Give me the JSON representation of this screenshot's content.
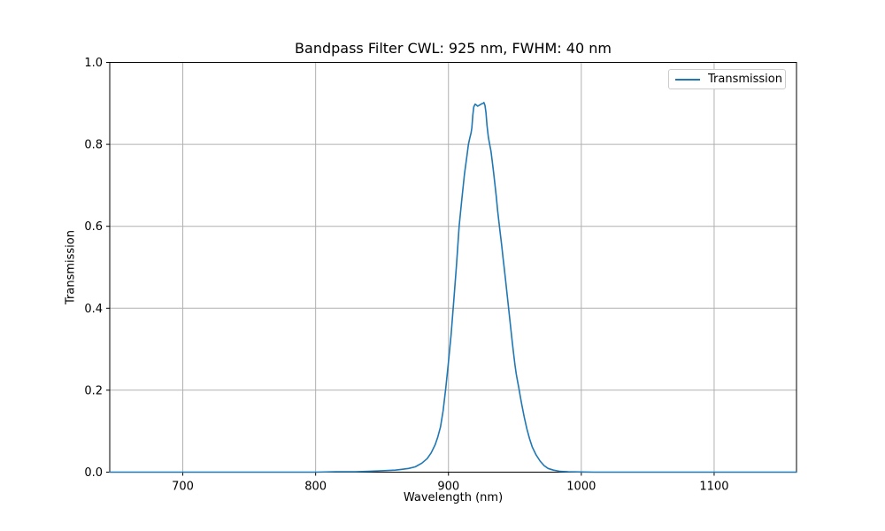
{
  "chart_data": {
    "type": "line",
    "title": "Bandpass Filter CWL: 925 nm, FWHM: 40 nm",
    "xlabel": "Wavelength (nm)",
    "ylabel": "Transmission",
    "xlim": [
      645,
      1162
    ],
    "ylim": [
      0.0,
      1.0
    ],
    "grid": true,
    "legend_position": "upper right",
    "xticks": [
      700,
      800,
      900,
      1000,
      1100
    ],
    "xtick_labels": [
      "700",
      "800",
      "900",
      "1000",
      "1100"
    ],
    "yticks": [
      0.0,
      0.2,
      0.4,
      0.6,
      0.8,
      1.0
    ],
    "ytick_labels": [
      "0.0",
      "0.2",
      "0.4",
      "0.6",
      "0.8",
      "1.0"
    ],
    "filter": {
      "cwl_nm": 925,
      "fwhm_nm": 40,
      "peak_transmission": 0.9
    },
    "colors": {
      "line": "#1f77b4",
      "grid": "#b0b0b0",
      "spine": "#000000",
      "background": "#ffffff"
    },
    "series": [
      {
        "name": "Transmission",
        "color": "#1f77b4",
        "points": [
          [
            645,
            0
          ],
          [
            660,
            0
          ],
          [
            680,
            0
          ],
          [
            700,
            0
          ],
          [
            720,
            0
          ],
          [
            740,
            0
          ],
          [
            760,
            0
          ],
          [
            780,
            0
          ],
          [
            800,
            0
          ],
          [
            815,
            0.001
          ],
          [
            830,
            0.001
          ],
          [
            840,
            0.002
          ],
          [
            848,
            0.003
          ],
          [
            855,
            0.004
          ],
          [
            860,
            0.005
          ],
          [
            865,
            0.007
          ],
          [
            870,
            0.009
          ],
          [
            875,
            0.013
          ],
          [
            880,
            0.022
          ],
          [
            884,
            0.033
          ],
          [
            887,
            0.047
          ],
          [
            890,
            0.067
          ],
          [
            892,
            0.086
          ],
          [
            894,
            0.11
          ],
          [
            896,
            0.15
          ],
          [
            898,
            0.205
          ],
          [
            900,
            0.268
          ],
          [
            902,
            0.335
          ],
          [
            904,
            0.42
          ],
          [
            906,
            0.505
          ],
          [
            908,
            0.6
          ],
          [
            910,
            0.665
          ],
          [
            912,
            0.727
          ],
          [
            914,
            0.775
          ],
          [
            915,
            0.8
          ],
          [
            916,
            0.815
          ],
          [
            917,
            0.828
          ],
          [
            917.6,
            0.841
          ],
          [
            918.3,
            0.87
          ],
          [
            919,
            0.891
          ],
          [
            920,
            0.898
          ],
          [
            921,
            0.896
          ],
          [
            922,
            0.893
          ],
          [
            923,
            0.895
          ],
          [
            924,
            0.897
          ],
          [
            925,
            0.899
          ],
          [
            926,
            0.9
          ],
          [
            926.7,
            0.902
          ],
          [
            927.5,
            0.895
          ],
          [
            928.2,
            0.878
          ],
          [
            929,
            0.846
          ],
          [
            930,
            0.818
          ],
          [
            931,
            0.8
          ],
          [
            932,
            0.783
          ],
          [
            933,
            0.757
          ],
          [
            934,
            0.73
          ],
          [
            935,
            0.701
          ],
          [
            936,
            0.672
          ],
          [
            937,
            0.638
          ],
          [
            938,
            0.61
          ],
          [
            939,
            0.582
          ],
          [
            940,
            0.555
          ],
          [
            941,
            0.525
          ],
          [
            942,
            0.497
          ],
          [
            943,
            0.468
          ],
          [
            944,
            0.438
          ],
          [
            945,
            0.408
          ],
          [
            946,
            0.378
          ],
          [
            947,
            0.348
          ],
          [
            948,
            0.318
          ],
          [
            949,
            0.29
          ],
          [
            950,
            0.263
          ],
          [
            951,
            0.24
          ],
          [
            952,
            0.222
          ],
          [
            953,
            0.205
          ],
          [
            954,
            0.186
          ],
          [
            955,
            0.168
          ],
          [
            957,
            0.135
          ],
          [
            959,
            0.106
          ],
          [
            961,
            0.082
          ],
          [
            963,
            0.062
          ],
          [
            966,
            0.042
          ],
          [
            969,
            0.027
          ],
          [
            972,
            0.016
          ],
          [
            975,
            0.009
          ],
          [
            979,
            0.005
          ],
          [
            984,
            0.002
          ],
          [
            990,
            0.001
          ],
          [
            1000,
            0.0005
          ],
          [
            1010,
            0
          ],
          [
            1030,
            0
          ],
          [
            1060,
            0
          ],
          [
            1090,
            0
          ],
          [
            1120,
            0
          ],
          [
            1145,
            0
          ],
          [
            1162,
            0
          ]
        ]
      }
    ]
  }
}
